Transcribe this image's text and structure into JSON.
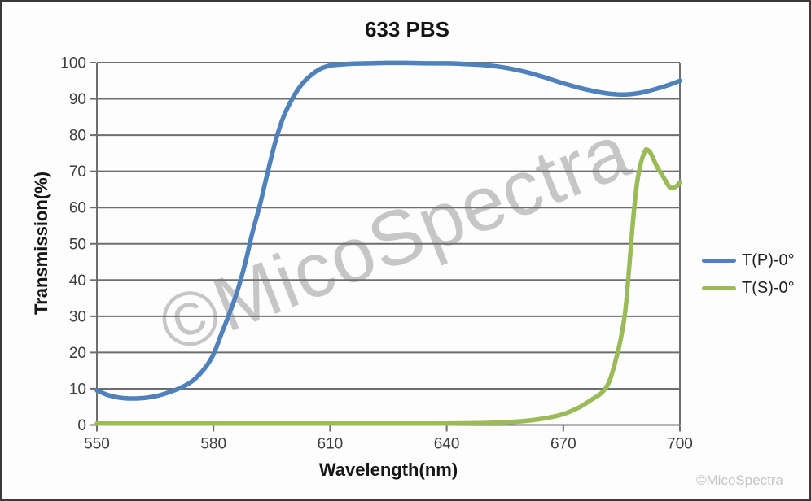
{
  "chart_data": {
    "type": "line",
    "title": "633 PBS",
    "xlabel": "Wavelength(nm)",
    "ylabel": "Transmission(%)",
    "xlim": [
      550,
      700
    ],
    "ylim": [
      0,
      100
    ],
    "x_ticks": [
      550,
      580,
      610,
      640,
      670,
      700
    ],
    "y_ticks": [
      0,
      10,
      20,
      30,
      40,
      50,
      60,
      70,
      80,
      90,
      100
    ],
    "grid": "horizontal",
    "legend_position": "right-outside",
    "series": [
      {
        "name": "T(P)-0°",
        "color": "#4F81BD",
        "x": [
          550,
          553,
          556,
          560,
          564,
          568,
          572,
          575,
          578,
          580,
          582,
          584,
          586,
          588,
          590,
          592,
          594,
          596,
          598,
          600,
          602,
          604,
          607,
          610,
          613,
          616,
          620,
          625,
          630,
          635,
          640,
          645,
          650,
          655,
          660,
          665,
          670,
          675,
          680,
          683,
          686,
          690,
          694,
          697,
          700
        ],
        "y": [
          9.5,
          8.2,
          7.5,
          7.3,
          7.7,
          8.8,
          10.5,
          12.5,
          16,
          19.5,
          25,
          30.5,
          36.5,
          44,
          53,
          61,
          70,
          78.5,
          85,
          89.5,
          93,
          95.5,
          98,
          99.2,
          99.5,
          99.7,
          99.8,
          99.9,
          99.9,
          99.8,
          99.8,
          99.6,
          99.3,
          98.6,
          97.5,
          96,
          94.3,
          92.8,
          91.7,
          91.3,
          91.2,
          91.7,
          92.8,
          93.8,
          95
        ]
      },
      {
        "name": "T(S)-0°",
        "color": "#9BBB59",
        "x": [
          550,
          560,
          570,
          580,
          590,
          600,
          610,
          620,
          630,
          640,
          648,
          654,
          660,
          665,
          670,
          674,
          677,
          680,
          682,
          684,
          685,
          686,
          687,
          688,
          689,
          690,
          691,
          691.5,
          692.5,
          694,
          696,
          697.5,
          699,
          700
        ],
        "y": [
          0.4,
          0.4,
          0.4,
          0.4,
          0.4,
          0.4,
          0.4,
          0.4,
          0.4,
          0.4,
          0.5,
          0.7,
          1.1,
          1.8,
          3,
          4.8,
          6.8,
          9,
          12.5,
          20,
          25,
          32,
          44,
          57,
          67,
          72.5,
          75.5,
          76,
          75,
          71.5,
          68,
          65.5,
          65.8,
          67
        ]
      }
    ]
  },
  "watermark": {
    "text": "©MicoSpectra",
    "color": "#c6c6c6"
  },
  "footer": {
    "credit": "©MicoSpectra"
  },
  "styles": {
    "grid_color": "#6e6e6e",
    "axis_color": "#6e6e6e",
    "tick_label_color": "#3d3d3d",
    "curve_width": 5.5
  }
}
